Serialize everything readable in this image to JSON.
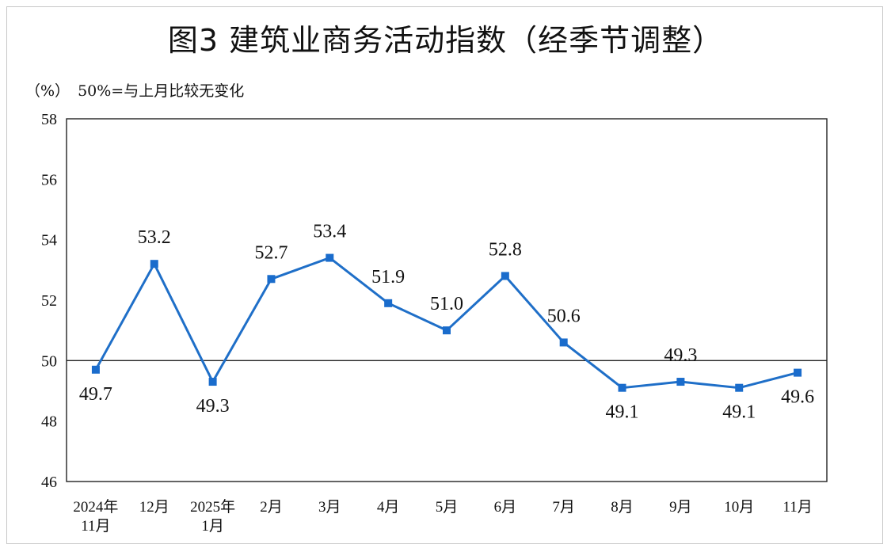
{
  "chart_data": {
    "type": "line",
    "title": "图3  建筑业商务活动指数（经季节调整）",
    "unit_label": "（%）",
    "reference_note": "50%=与上月比较无变化",
    "categories": [
      [
        "2024年",
        "11月"
      ],
      [
        "12月"
      ],
      [
        "2025年",
        "1月"
      ],
      [
        "2月"
      ],
      [
        "3月"
      ],
      [
        "4月"
      ],
      [
        "5月"
      ],
      [
        "6月"
      ],
      [
        "7月"
      ],
      [
        "8月"
      ],
      [
        "9月"
      ],
      [
        "10月"
      ],
      [
        "11月"
      ]
    ],
    "values": [
      49.7,
      53.2,
      49.3,
      52.7,
      53.4,
      51.9,
      51.0,
      52.8,
      50.6,
      49.1,
      49.3,
      49.1,
      49.6
    ],
    "value_labels": [
      "49.7",
      "53.2",
      "49.3",
      "52.7",
      "53.4",
      "51.9",
      "51.0",
      "52.8",
      "50.6",
      "49.1",
      "49.3",
      "49.1",
      "49.6"
    ],
    "label_positions": [
      "below",
      "above",
      "below",
      "above",
      "above",
      "above",
      "above",
      "above",
      "above",
      "below",
      "above",
      "below",
      "below"
    ],
    "ylim": [
      46,
      58
    ],
    "yticks": [
      46,
      48,
      50,
      52,
      54,
      56,
      58
    ],
    "reference_line": 50,
    "grid": false,
    "line_color": "#1f6fc8",
    "marker_color": "#1a6ccc"
  }
}
